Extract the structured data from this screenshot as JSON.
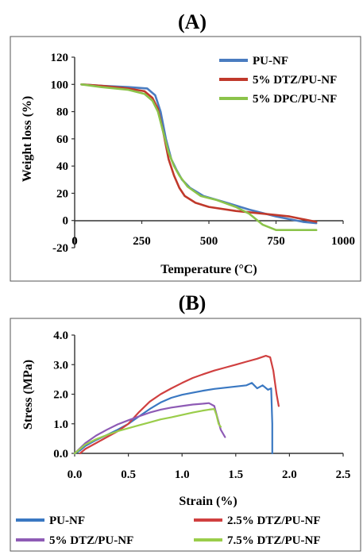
{
  "chart_data": [
    {
      "panel": "(A)",
      "type": "line",
      "title": "",
      "xlabel": "Temperature (°C)",
      "ylabel": "Weight loss  (%)",
      "xlim": [
        0,
        1000
      ],
      "ylim": [
        -20,
        120
      ],
      "xticks": [
        0,
        250,
        500,
        750,
        1000
      ],
      "yticks": [
        -20,
        0,
        20,
        40,
        60,
        80,
        100,
        120
      ],
      "grid": false,
      "legend_position": "top-right",
      "series": [
        {
          "name": "PU-NF",
          "color": "#4a7cc0",
          "x": [
            25,
            100,
            200,
            270,
            300,
            320,
            340,
            360,
            380,
            400,
            430,
            480,
            550,
            650,
            750,
            850,
            900
          ],
          "y": [
            100,
            99,
            98,
            97,
            92,
            80,
            60,
            45,
            37,
            30,
            24,
            18,
            14,
            8,
            3,
            -1,
            -2
          ]
        },
        {
          "name": "5% DTZ/PU-NF",
          "color": "#c0392b",
          "x": [
            25,
            100,
            200,
            260,
            290,
            310,
            330,
            350,
            370,
            390,
            410,
            450,
            500,
            600,
            700,
            800,
            900
          ],
          "y": [
            100,
            99,
            97,
            95,
            90,
            82,
            65,
            45,
            33,
            24,
            18,
            13,
            10,
            7,
            5,
            3,
            -1
          ]
        },
        {
          "name": "5% DPC/PU-NF",
          "color": "#8bc34a",
          "x": [
            25,
            100,
            200,
            260,
            290,
            310,
            330,
            350,
            370,
            390,
            420,
            470,
            530,
            600,
            650,
            700,
            750,
            800,
            900
          ],
          "y": [
            100,
            98,
            96,
            93,
            88,
            80,
            65,
            50,
            40,
            33,
            25,
            18,
            15,
            10,
            5,
            -3,
            -7,
            -7,
            -7
          ]
        }
      ]
    },
    {
      "panel": "(B)",
      "type": "line",
      "title": "",
      "xlabel": "Strain (%)",
      "ylabel": "Stress (MPa)",
      "xlim": [
        0,
        2.5
      ],
      "ylim": [
        0,
        4.0
      ],
      "xticks": [
        "0.0",
        "0.5",
        "1.0",
        "1.5",
        "2.0",
        "2.5"
      ],
      "yticks": [
        "0.0",
        "1.0",
        "2.0",
        "3.0",
        "4.0"
      ],
      "grid": false,
      "legend_position": "bottom",
      "series": [
        {
          "name": "PU-NF",
          "color": "#3a78c2",
          "x": [
            0,
            0.05,
            0.1,
            0.2,
            0.3,
            0.4,
            0.5,
            0.6,
            0.7,
            0.8,
            0.9,
            1.0,
            1.1,
            1.2,
            1.3,
            1.4,
            1.5,
            1.6,
            1.65,
            1.7,
            1.75,
            1.8,
            1.83,
            1.84,
            1.84
          ],
          "y": [
            0,
            0.1,
            0.25,
            0.45,
            0.62,
            0.8,
            1.0,
            1.25,
            1.5,
            1.72,
            1.88,
            1.98,
            2.05,
            2.12,
            2.18,
            2.22,
            2.26,
            2.3,
            2.38,
            2.2,
            2.3,
            2.15,
            2.2,
            1.0,
            0
          ]
        },
        {
          "name": "2.5% DTZ/PU-NF",
          "color": "#d04040",
          "x": [
            0.05,
            0.1,
            0.2,
            0.3,
            0.4,
            0.5,
            0.6,
            0.7,
            0.8,
            0.9,
            1.0,
            1.1,
            1.2,
            1.3,
            1.4,
            1.5,
            1.6,
            1.7,
            1.78,
            1.82,
            1.85,
            1.88,
            1.9
          ],
          "y": [
            0,
            0.15,
            0.35,
            0.55,
            0.75,
            1.0,
            1.4,
            1.75,
            2.0,
            2.2,
            2.38,
            2.55,
            2.68,
            2.8,
            2.9,
            3.0,
            3.1,
            3.2,
            3.3,
            3.25,
            2.8,
            2.0,
            1.6
          ]
        },
        {
          "name": "5% DTZ/PU-NF",
          "color": "#8e5bb5",
          "x": [
            0,
            0.1,
            0.2,
            0.3,
            0.4,
            0.5,
            0.6,
            0.7,
            0.8,
            0.9,
            1.0,
            1.1,
            1.2,
            1.25,
            1.3,
            1.33,
            1.36,
            1.4
          ],
          "y": [
            0,
            0.35,
            0.6,
            0.8,
            0.98,
            1.12,
            1.25,
            1.38,
            1.48,
            1.55,
            1.6,
            1.65,
            1.68,
            1.7,
            1.6,
            1.2,
            0.8,
            0.55
          ]
        },
        {
          "name": "7.5% DTZ/PU-NF",
          "color": "#9acd4a",
          "x": [
            0,
            0.1,
            0.2,
            0.3,
            0.4,
            0.5,
            0.6,
            0.7,
            0.8,
            0.9,
            1.0,
            1.1,
            1.2,
            1.25,
            1.3,
            1.32,
            1.34,
            1.36
          ],
          "y": [
            0,
            0.3,
            0.48,
            0.62,
            0.75,
            0.85,
            0.95,
            1.05,
            1.15,
            1.22,
            1.3,
            1.38,
            1.45,
            1.48,
            1.5,
            1.3,
            1.0,
            0.9
          ]
        }
      ]
    }
  ]
}
